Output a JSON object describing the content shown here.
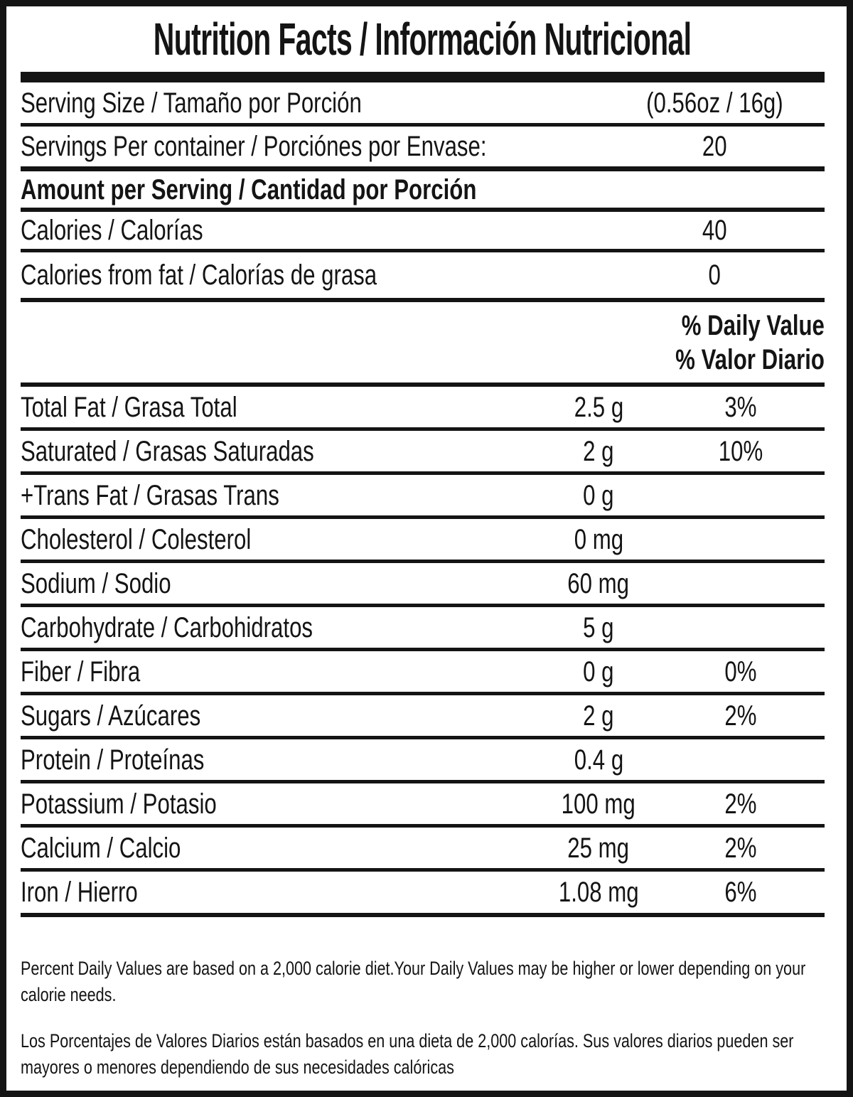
{
  "colors": {
    "ink": "#141414",
    "background": "#ffffff"
  },
  "title": "Nutrition Facts / Información Nutricional",
  "serving": {
    "size_label": "Serving Size / Tamaño por Porción",
    "size_value": "(0.56oz / 16g)",
    "per_container_label": "Servings Per container / Porciónes por Envase:",
    "per_container_value": "20"
  },
  "amount_header": "Amount per Serving / Cantidad por Porción",
  "calories": {
    "label": "Calories / Calorías",
    "value": "40"
  },
  "calories_from_fat": {
    "label": "Calories from fat / Calorías de grasa",
    "value": "0"
  },
  "daily_value_header": {
    "en": "% Daily Value",
    "es": "% Valor Diario"
  },
  "nutrients": [
    {
      "label": "Total Fat / Grasa Total",
      "amount": "2.5 g",
      "dv": "3%"
    },
    {
      "label": "Saturated / Grasas Saturadas",
      "amount": "2 g",
      "dv": "10%"
    },
    {
      "label": "+Trans Fat / Grasas Trans",
      "amount": "0 g",
      "dv": ""
    },
    {
      "label": "Cholesterol / Colesterol",
      "amount": "0 mg",
      "dv": ""
    },
    {
      "label": "Sodium / Sodio",
      "amount": "60 mg",
      "dv": ""
    },
    {
      "label": "Carbohydrate / Carbohidratos",
      "amount": "5 g",
      "dv": ""
    },
    {
      "label": "Fiber / Fibra",
      "amount": "0 g",
      "dv": "0%"
    },
    {
      "label": "Sugars / Azúcares",
      "amount": "2 g",
      "dv": "2%"
    },
    {
      "label": "Protein / Proteínas",
      "amount": "0.4 g",
      "dv": ""
    },
    {
      "label": "Potassium / Potasio",
      "amount": "100 mg",
      "dv": "2%"
    },
    {
      "label": "Calcium / Calcio",
      "amount": "25 mg",
      "dv": "2%"
    },
    {
      "label": "Iron / Hierro",
      "amount": "1.08 mg",
      "dv": "6%"
    }
  ],
  "footnotes": {
    "en": "Percent Daily Values are based on a 2,000 calorie diet.Your Daily Values may be higher or lower depending on your calorie needs.",
    "es": "Los Porcentajes de Valores Diarios están basados en una dieta de 2,000 calorías. Sus valores diarios pueden ser mayores o menores dependiendo de sus necesidades calóricas"
  }
}
